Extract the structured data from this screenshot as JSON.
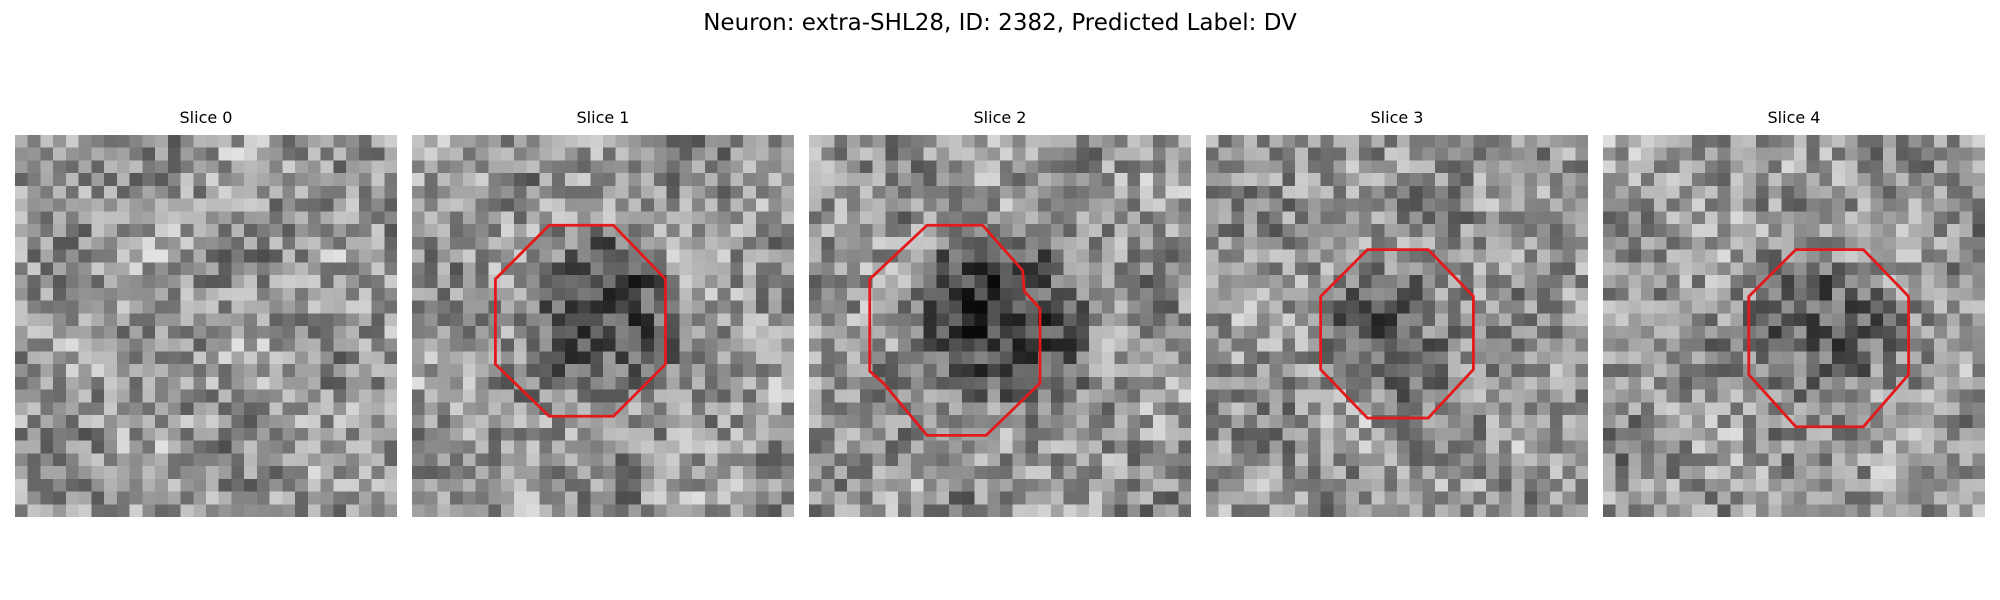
{
  "figure": {
    "title": "Neuron: extra-SHL28, ID: 2382, Predicted Label: DV",
    "contour_color": "#e31a1c"
  },
  "panels": [
    {
      "title": "Slice 0",
      "has_contour": false,
      "dark_blob_strength": 0.0
    },
    {
      "title": "Slice 1",
      "has_contour": true,
      "dark_blob_strength": 0.55
    },
    {
      "title": "Slice 2",
      "has_contour": true,
      "dark_blob_strength": 0.65
    },
    {
      "title": "Slice 3",
      "has_contour": true,
      "dark_blob_strength": 0.35
    },
    {
      "title": "Slice 4",
      "has_contour": true,
      "dark_blob_strength": 0.45
    }
  ]
}
